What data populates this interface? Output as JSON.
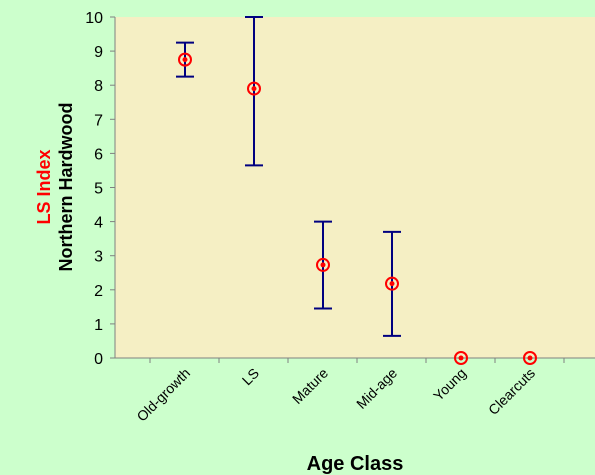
{
  "chart_data": {
    "type": "scatter",
    "title": "",
    "xlabel": "Age Class",
    "ylabel_lines": [
      "LS Index",
      "Northern Hardwood"
    ],
    "categories": [
      "Old-growth",
      "LS",
      "Mature",
      "Mid-age",
      "Young",
      "Clearcuts"
    ],
    "values": [
      8.75,
      7.9,
      2.73,
      2.18,
      0,
      0
    ],
    "error_low": [
      8.25,
      5.65,
      1.45,
      0.65,
      0,
      0
    ],
    "error_high": [
      9.25,
      10,
      4.0,
      3.7,
      0,
      0
    ],
    "ylim": [
      0,
      10
    ],
    "yticks": [
      "0",
      "1",
      "2",
      "3",
      "4",
      "5",
      "6",
      "7",
      "8",
      "9",
      "10"
    ],
    "grid": false,
    "legend": "none",
    "colors": {
      "background": "#ccffcc",
      "plot_area": "#f5efc4",
      "marker": "#ff0000",
      "error_bar": "#000080",
      "ylabel_1": "#ff0000",
      "ylabel_2": "#000000"
    }
  }
}
